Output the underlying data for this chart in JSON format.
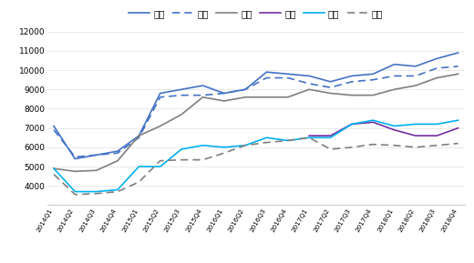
{
  "quarters": [
    "2014Q1",
    "2014Q2",
    "2014Q3",
    "2014Q4",
    "2015Q1",
    "2015Q2",
    "2015Q3",
    "2015Q4",
    "2016Q1",
    "2016Q2",
    "2016Q3",
    "2016Q4",
    "2017Q1",
    "2017Q2",
    "2017Q3",
    "2017Q4",
    "2018Q1",
    "2018Q2",
    "2018Q3",
    "2018Q4"
  ],
  "beijing": [
    7100,
    5400,
    5600,
    5800,
    6600,
    8800,
    9000,
    9200,
    8800,
    9000,
    9900,
    9800,
    9700,
    9400,
    9700,
    9800,
    10300,
    10200,
    10600,
    10900
  ],
  "shanghai": [
    6900,
    5500,
    5600,
    5700,
    6500,
    8600,
    8700,
    8700,
    8800,
    9000,
    9600,
    9600,
    9300,
    9100,
    9400,
    9500,
    9700,
    9700,
    10100,
    10200
  ],
  "shenzhen": [
    4900,
    4750,
    4800,
    5300,
    6600,
    7100,
    7700,
    8600,
    8400,
    8600,
    8600,
    8600,
    9000,
    8800,
    8700,
    8700,
    9000,
    9200,
    9600,
    9800
  ],
  "lanzhou": [
    null,
    null,
    null,
    null,
    null,
    null,
    null,
    null,
    null,
    null,
    null,
    null,
    6600,
    6600,
    7200,
    7300,
    6900,
    6600,
    6600,
    7000
  ],
  "kunming": [
    4900,
    3700,
    3700,
    3800,
    5000,
    5000,
    5900,
    6100,
    6000,
    6100,
    6500,
    6350,
    6500,
    6500,
    7200,
    7400,
    7100,
    7200,
    7200,
    7400
  ],
  "shenyang": [
    4600,
    3550,
    3600,
    3700,
    4200,
    5300,
    5350,
    5350,
    5700,
    6100,
    6250,
    6350,
    6500,
    5900,
    6000,
    6150,
    6100,
    6000,
    6100,
    6200
  ],
  "colors": {
    "beijing": "#4472C4",
    "shanghai": "#4472C4",
    "shenzhen": "#7F7F7F",
    "lanzhou": "#7030A0",
    "kunming": "#00B0F0",
    "shenyang": "#7F7F7F"
  },
  "legend_labels": [
    "北京",
    "上海",
    "深圳",
    "兰州",
    "昆明",
    "沈阳"
  ],
  "ylim": [
    3000,
    12000
  ],
  "yticks": [
    3000,
    4000,
    5000,
    6000,
    7000,
    8000,
    9000,
    10000,
    11000,
    12000
  ],
  "bg_color": "#ffffff"
}
